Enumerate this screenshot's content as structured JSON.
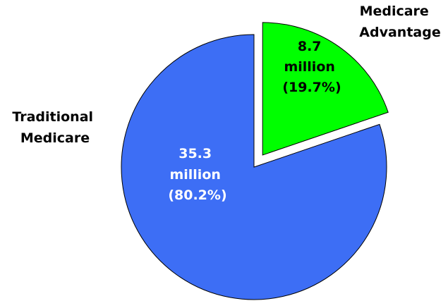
{
  "chart_data": {
    "type": "pie",
    "title": "",
    "slices": [
      {
        "name_lines": [
          "Medicare",
          "Advantage"
        ],
        "value": 8.7,
        "percent": 19.7,
        "value_line1": "8.7",
        "value_line2": "million",
        "value_line3": "(19.7%)",
        "color": "#00ff00",
        "exploded": true
      },
      {
        "name_lines": [
          "Traditional",
          "Medicare"
        ],
        "value": 35.3,
        "percent": 80.2,
        "value_line1": "35.3",
        "value_line2": "million",
        "value_line3": "(80.2%)",
        "color": "#3d6ef5",
        "exploded": false
      }
    ]
  }
}
